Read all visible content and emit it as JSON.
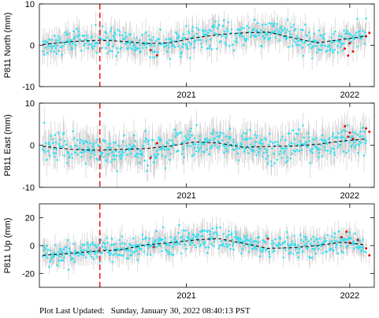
{
  "footer": {
    "label": "Plot Last Updated:",
    "value": "Sunday, January 30, 2022 08:40:13 PST"
  },
  "colors": {
    "point": "#33e0f2",
    "outlier": "#e01010",
    "error_bar": "#c8c8c8",
    "fit_line": "#000000",
    "event_line": "#e82020"
  },
  "chart_data": [
    {
      "type": "scatter",
      "ylabel": "P811 North (mm)",
      "xlim": [
        2020.1,
        2022.15
      ],
      "ylim": [
        -10,
        10
      ],
      "yticks": [
        -10,
        0,
        10
      ],
      "xticks": [
        {
          "value": 2021.0,
          "label": "2021"
        },
        {
          "value": 2022.0,
          "label": "2022"
        }
      ],
      "event_line_x": 2020.47,
      "fit": {
        "x": [
          2020.12,
          2020.3,
          2020.45,
          2020.6,
          2020.75,
          2020.9,
          2021.05,
          2021.2,
          2021.35,
          2021.5,
          2021.65,
          2021.8,
          2021.95,
          2022.1
        ],
        "y": [
          0.2,
          0.9,
          1.2,
          1.0,
          0.4,
          0.6,
          1.8,
          2.6,
          3.0,
          3.2,
          1.8,
          0.6,
          1.4,
          2.2
        ]
      },
      "scatter_sigma": 1.6,
      "error_bar": 2.6,
      "outliers": [
        {
          "x": 2020.78,
          "y": -1.2
        },
        {
          "x": 2020.82,
          "y": -2.4
        },
        {
          "x": 2021.97,
          "y": -0.8
        },
        {
          "x": 2021.99,
          "y": -2.5
        },
        {
          "x": 2022.0,
          "y": 0.5
        },
        {
          "x": 2022.02,
          "y": -1.5
        },
        {
          "x": 2022.1,
          "y": 2.2
        },
        {
          "x": 2022.12,
          "y": 3.0
        }
      ]
    },
    {
      "type": "scatter",
      "ylabel": "P811 East (mm)",
      "xlim": [
        2020.1,
        2022.15
      ],
      "ylim": [
        -10,
        10
      ],
      "yticks": [
        -10,
        0,
        10
      ],
      "xticks": [
        {
          "value": 2021.0,
          "label": "2021"
        },
        {
          "value": 2022.0,
          "label": "2022"
        }
      ],
      "event_line_x": 2020.47,
      "fit": {
        "x": [
          2020.12,
          2020.3,
          2020.45,
          2020.6,
          2020.75,
          2020.9,
          2021.05,
          2021.2,
          2021.35,
          2021.5,
          2021.65,
          2021.8,
          2021.95,
          2022.1
        ],
        "y": [
          -0.3,
          -1.0,
          -1.2,
          -1.0,
          -0.8,
          -0.2,
          0.8,
          0.5,
          -0.5,
          -0.3,
          -0.2,
          0.2,
          1.0,
          1.5
        ]
      },
      "scatter_sigma": 1.8,
      "error_bar": 3.2,
      "outliers": [
        {
          "x": 2020.82,
          "y": 0.5
        },
        {
          "x": 2020.78,
          "y": -3.0
        },
        {
          "x": 2021.97,
          "y": 4.5
        },
        {
          "x": 2021.99,
          "y": 2.0
        },
        {
          "x": 2022.0,
          "y": 3.0
        },
        {
          "x": 2022.02,
          "y": 1.5
        },
        {
          "x": 2022.1,
          "y": 4.0
        },
        {
          "x": 2022.12,
          "y": 3.2
        }
      ]
    },
    {
      "type": "scatter",
      "ylabel": "P811 Up (mm)",
      "xlim": [
        2020.1,
        2022.15
      ],
      "ylim": [
        -30,
        30
      ],
      "yticks": [
        -20,
        0,
        20
      ],
      "xticks": [
        {
          "value": 2021.0,
          "label": "2021"
        },
        {
          "value": 2022.0,
          "label": "2022"
        }
      ],
      "event_line_x": 2020.47,
      "fit": {
        "x": [
          2020.12,
          2020.3,
          2020.45,
          2020.6,
          2020.75,
          2020.9,
          2021.05,
          2021.2,
          2021.35,
          2021.5,
          2021.65,
          2021.8,
          2021.95,
          2022.1
        ],
        "y": [
          -7.0,
          -5.5,
          -4.0,
          -3.0,
          0.5,
          2.0,
          4.0,
          5.0,
          1.5,
          -2.0,
          -1.5,
          0.0,
          2.5,
          0.5
        ]
      },
      "scatter_sigma": 4.0,
      "error_bar": 7.0,
      "outliers": [
        {
          "x": 2020.8,
          "y": -1.0
        },
        {
          "x": 2021.5,
          "y": 5.0
        },
        {
          "x": 2021.95,
          "y": 6.0
        },
        {
          "x": 2021.98,
          "y": 10.0
        },
        {
          "x": 2022.0,
          "y": 2.0
        },
        {
          "x": 2022.05,
          "y": 4.0
        },
        {
          "x": 2022.1,
          "y": -2.0
        },
        {
          "x": 2022.12,
          "y": -7.0
        }
      ]
    }
  ]
}
